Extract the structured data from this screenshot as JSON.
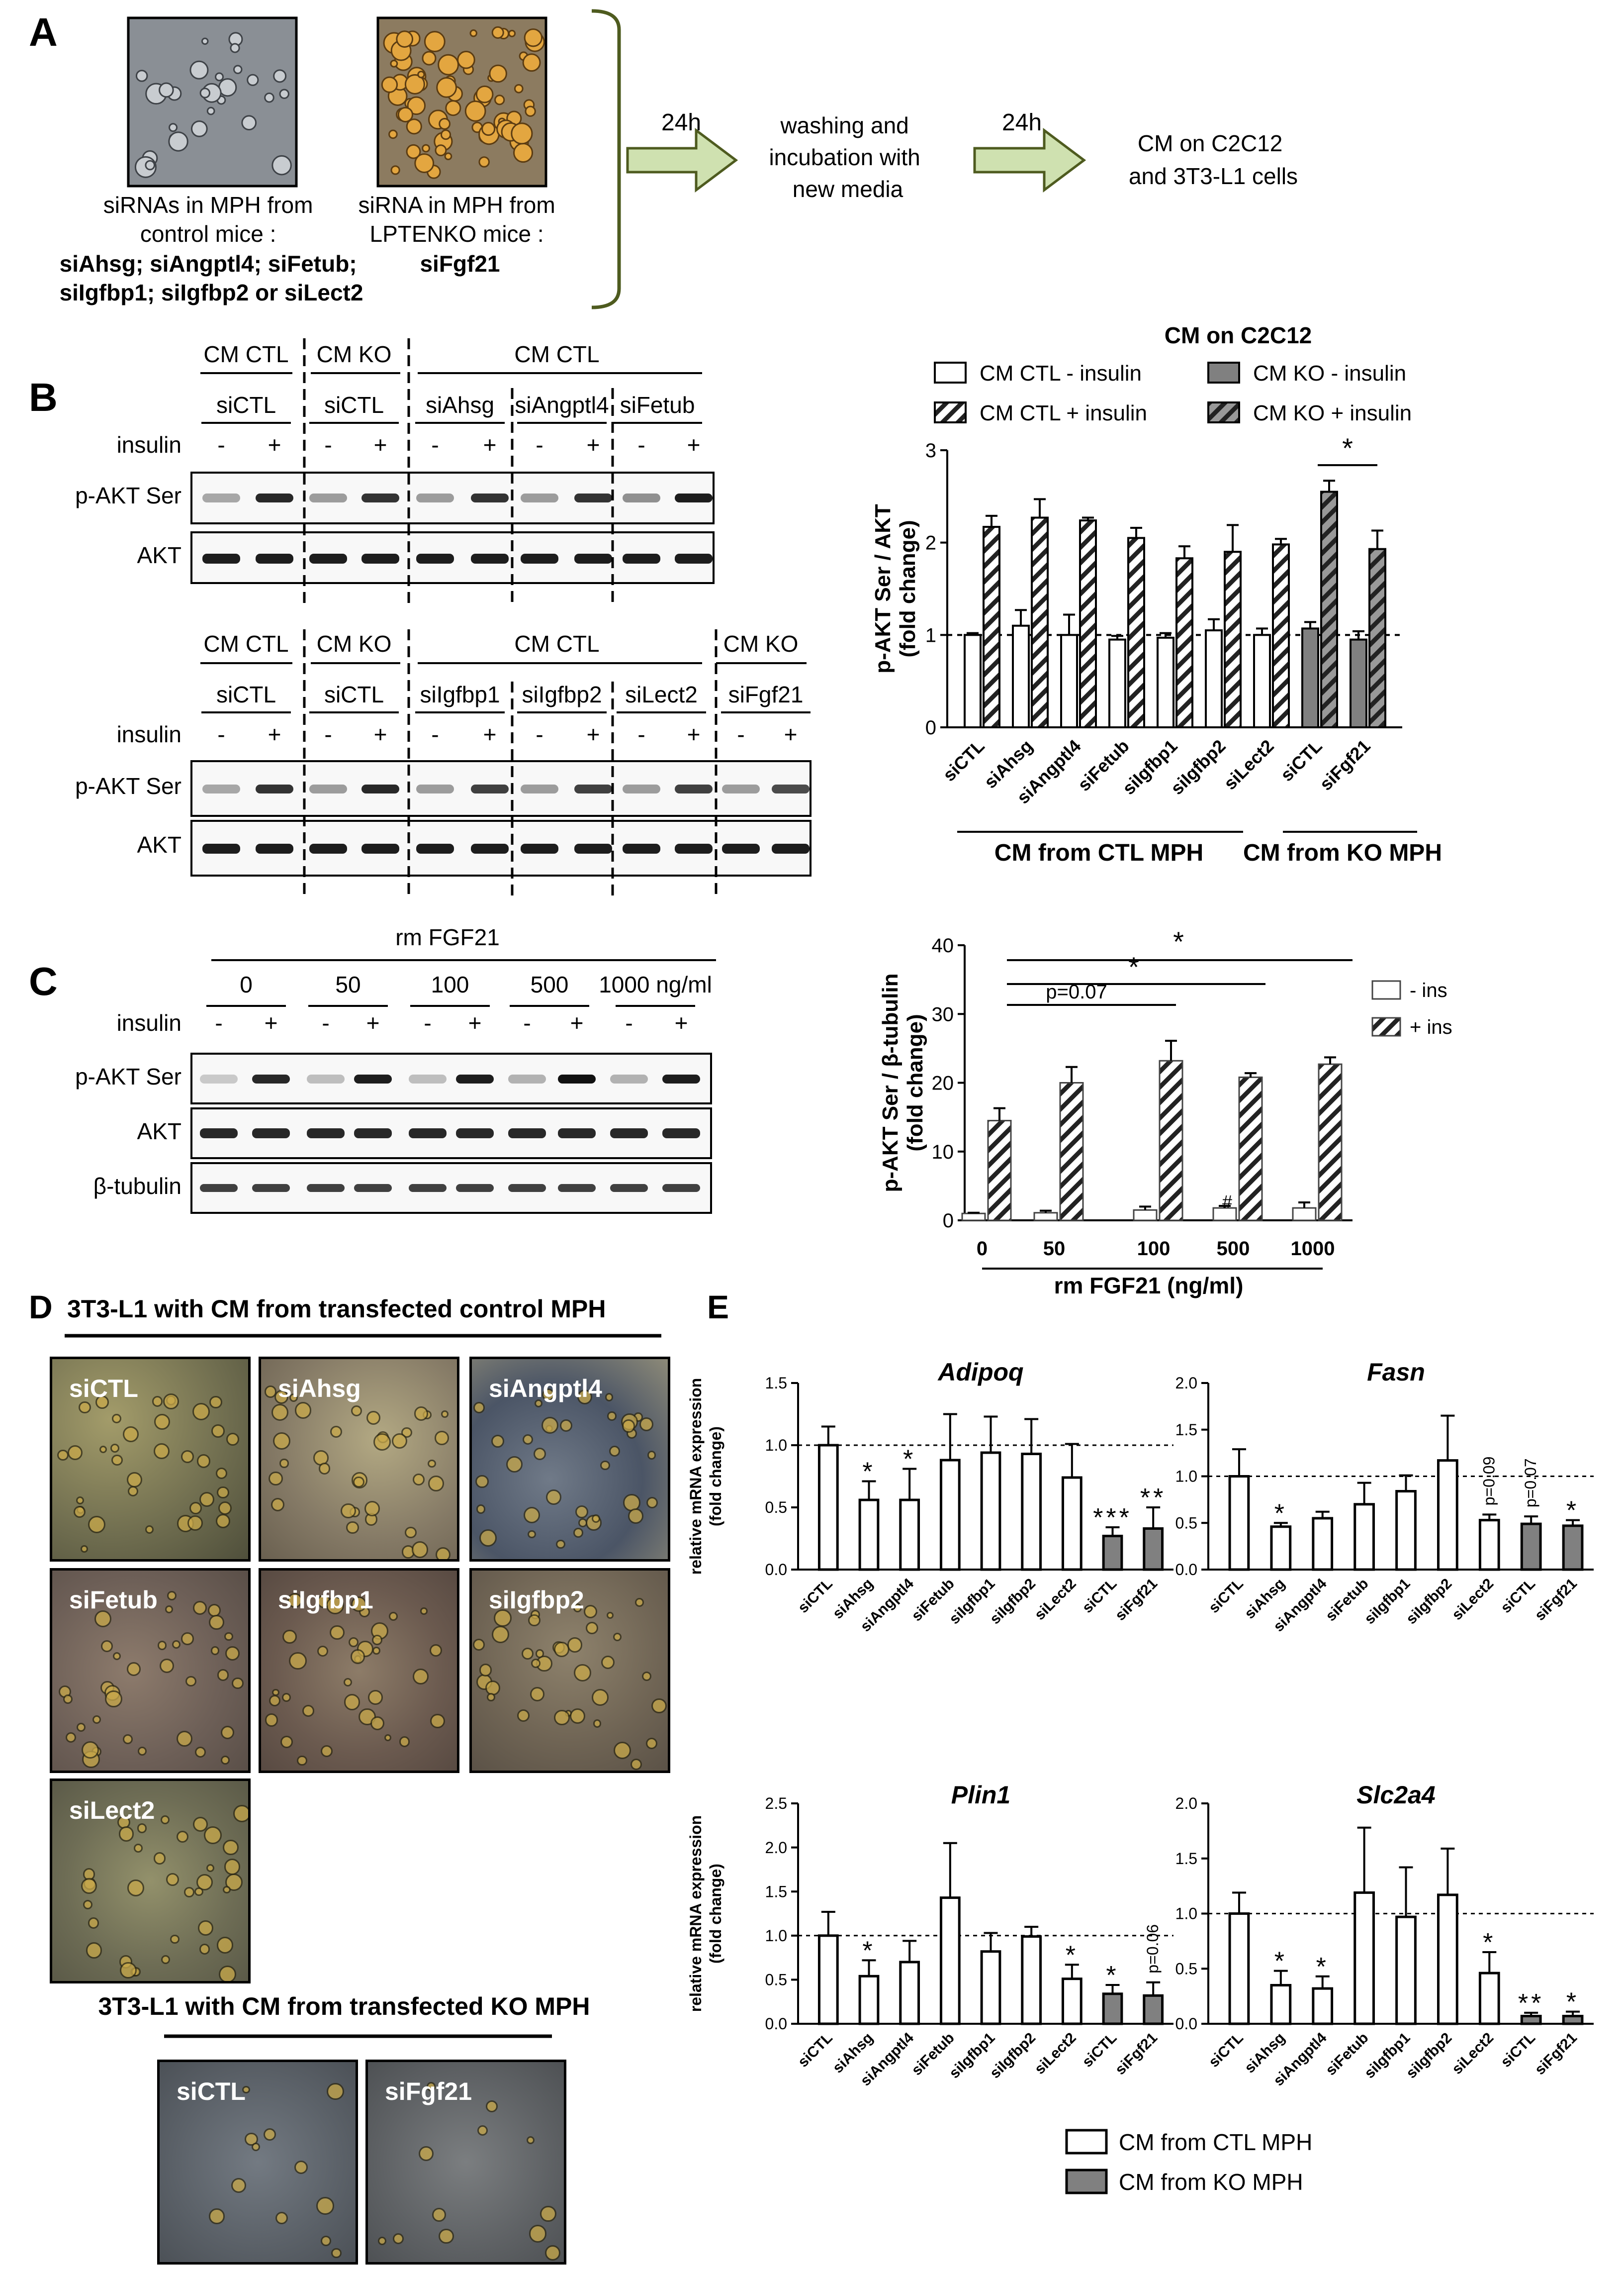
{
  "panelA": {
    "letter": "A",
    "caption1": [
      "siRNAs in MPH from",
      "control mice :"
    ],
    "caption1_bold": [
      "siAhsg; siAngptl4; siFetub;",
      "siIgfbp1; siIgfbp2 or siLect2"
    ],
    "caption2": [
      "siRNA in MPH from",
      "LPTENKO mice :"
    ],
    "caption2_bold": [
      "siFgf21"
    ],
    "step1_time": "24h",
    "step2_text": [
      "washing and",
      "incubation with",
      "new media"
    ],
    "step2_time": "24h",
    "step3_text": [
      "CM on C2C12",
      "and 3T3-L1 cells"
    ]
  },
  "panelB": {
    "letter": "B",
    "insulin_label": "insulin",
    "minus": "-",
    "plus": "+",
    "blot1": {
      "groups": [
        "CM CTL",
        "CM KO",
        "CM CTL"
      ],
      "sirnas": [
        "siCTL",
        "siCTL",
        "siAhsg",
        "siAngptl4",
        "siFetub"
      ],
      "rows": [
        "p-AKT Ser",
        "AKT"
      ]
    },
    "blot2": {
      "groups": [
        "CM CTL",
        "CM KO",
        "CM CTL",
        "CM KO"
      ],
      "sirnas": [
        "siCTL",
        "siCTL",
        "siIgfbp1",
        "siIgfbp2",
        "siLect2",
        "siFgf21"
      ],
      "rows": [
        "p-AKT Ser",
        "AKT"
      ]
    }
  },
  "panelC": {
    "letter": "C",
    "treatment_label": "rm FGF21",
    "doses": [
      "0",
      "50",
      "100",
      "500",
      "1000 ng/ml"
    ],
    "insulin_label": "insulin",
    "rows": [
      "p-AKT Ser",
      "AKT",
      "β-tubulin"
    ]
  },
  "panelD": {
    "letter": "D",
    "title_ctl": "3T3-L1 with CM from transfected control MPH",
    "title_ko": "3T3-L1 with CM from transfected KO MPH",
    "ctl_photos": [
      "siCTL",
      "siAhsg",
      "siAngptl4",
      "siFetub",
      "siIgfbp1",
      "siIgfbp2",
      "siLect2"
    ],
    "ko_photos": [
      "siCTL",
      "siFgf21"
    ]
  },
  "panelE": {
    "letter": "E",
    "legend": [
      "CM from CTL MPH",
      "CM from KO MPH"
    ]
  },
  "chart_data": [
    {
      "id": "B",
      "type": "bar",
      "title": "CM on C2C12",
      "ylabel": "p-AKT Ser / AKT (fold change)",
      "ylim": [
        0,
        3
      ],
      "yticks": [
        "0",
        "1",
        "2",
        "3"
      ],
      "categories": [
        "siCTL",
        "siAhsg",
        "siAngptl4",
        "siFetub",
        "siIgfbp1",
        "siIgfbp2",
        "siLect2",
        "siCTL",
        "siFgf21"
      ],
      "series": [
        {
          "name": "CM CTL - insulin",
          "values": [
            1.0,
            1.1,
            1.0,
            0.95,
            0.97,
            1.05,
            1.0,
            1.07,
            0.95
          ],
          "errors": [
            0.02,
            0.17,
            0.22,
            0.04,
            0.05,
            0.12,
            0.07,
            0.07,
            0.09
          ]
        },
        {
          "name": "CM CTL + insulin",
          "values": [
            2.17,
            2.27,
            2.24,
            2.05,
            1.83,
            1.9,
            1.98,
            2.55,
            1.93
          ],
          "errors": [
            0.12,
            0.2,
            0.03,
            0.11,
            0.13,
            0.29,
            0.06,
            0.12,
            0.2
          ]
        }
      ],
      "legend": [
        "CM CTL - insulin",
        "CM CTL + insulin",
        "CM KO - insulin",
        "CM KO + insulin"
      ],
      "groups": [
        "CM from CTL MPH",
        "CM from KO MPH"
      ],
      "annotations": [
        "*"
      ]
    },
    {
      "id": "C",
      "type": "bar",
      "ylabel": "p-AKT Ser / β-tubulin (fold change)",
      "xlabel": "rm FGF21 (ng/ml)",
      "ylim": [
        0,
        40
      ],
      "yticks": [
        "0",
        "10",
        "20",
        "30",
        "40"
      ],
      "categories": [
        "0",
        "50",
        "100",
        "500",
        "1000"
      ],
      "series": [
        {
          "name": "- ins",
          "values": [
            1.0,
            1.1,
            1.5,
            1.8,
            1.8
          ],
          "errors": [
            0.1,
            0.3,
            0.5,
            0.3,
            0.8
          ]
        },
        {
          "name": "+ ins",
          "values": [
            14.5,
            20.0,
            23.2,
            20.8,
            22.7
          ],
          "errors": [
            1.8,
            2.3,
            2.9,
            0.6,
            1.0
          ]
        }
      ],
      "annotations": [
        "p=0.07",
        "*",
        "*",
        "#"
      ]
    },
    {
      "id": "Adipoq",
      "type": "bar",
      "title": "Adipoq",
      "ylabel": "relative mRNA expression (fold change)",
      "ylim": [
        0,
        1.5
      ],
      "yticks": [
        "0.0",
        "0.5",
        "1.0",
        "1.5"
      ],
      "categories": [
        "siCTL",
        "siAhsg",
        "siAngptl4",
        "siFetub",
        "siIgfbp1",
        "siIgfbp2",
        "siLect2",
        "siCTL",
        "siFgf21"
      ],
      "values": [
        1.0,
        0.56,
        0.56,
        0.88,
        0.94,
        0.93,
        0.74,
        0.27,
        0.33
      ],
      "errors": [
        0.15,
        0.15,
        0.25,
        0.37,
        0.29,
        0.28,
        0.27,
        0.07,
        0.17
      ],
      "sig": [
        "",
        "*",
        "*",
        "",
        "",
        "",
        "",
        "***",
        "**"
      ]
    },
    {
      "id": "Fasn",
      "type": "bar",
      "title": "Fasn",
      "ylabel": "",
      "ylim": [
        0,
        2.0
      ],
      "yticks": [
        "0.0",
        "0.5",
        "1.0",
        "1.5",
        "2.0"
      ],
      "categories": [
        "siCTL",
        "siAhsg",
        "siAngptl4",
        "siFetub",
        "siIgfbp1",
        "siIgfbp2",
        "siLect2",
        "siCTL",
        "siFgf21"
      ],
      "values": [
        1.0,
        0.46,
        0.55,
        0.7,
        0.84,
        1.17,
        0.53,
        0.49,
        0.47
      ],
      "errors": [
        0.29,
        0.04,
        0.07,
        0.23,
        0.17,
        0.48,
        0.06,
        0.08,
        0.06
      ],
      "sig": [
        "",
        "*",
        "",
        "",
        "",
        "",
        "p=0.09",
        "p=0.07",
        "*"
      ]
    },
    {
      "id": "Plin1",
      "type": "bar",
      "title": "Plin1",
      "ylabel": "relative mRNA expression (fold change)",
      "ylim": [
        0,
        2.5
      ],
      "yticks": [
        "0.0",
        "0.5",
        "1.0",
        "1.5",
        "2.0",
        "2.5"
      ],
      "categories": [
        "siCTL",
        "siAhsg",
        "siAngptl4",
        "siFetub",
        "siIgfbp1",
        "siIgfbp2",
        "siLect2",
        "siCTL",
        "siFgf21"
      ],
      "values": [
        1.0,
        0.54,
        0.7,
        1.43,
        0.82,
        0.99,
        0.51,
        0.34,
        0.32
      ],
      "errors": [
        0.27,
        0.18,
        0.24,
        0.62,
        0.21,
        0.11,
        0.16,
        0.1,
        0.15
      ],
      "sig": [
        "",
        "*",
        "",
        "",
        "",
        "",
        "*",
        "*",
        "p=0.06"
      ]
    },
    {
      "id": "Slc2a4",
      "type": "bar",
      "title": "Slc2a4",
      "ylabel": "",
      "ylim": [
        0,
        2.0
      ],
      "yticks": [
        "0.0",
        "0.5",
        "1.0",
        "1.5",
        "2.0"
      ],
      "categories": [
        "siCTL",
        "siAhsg",
        "siAngptl4",
        "siFetub",
        "siIgfbp1",
        "siIgfbp2",
        "siLect2",
        "siCTL",
        "siFgf21"
      ],
      "values": [
        1.0,
        0.35,
        0.32,
        1.19,
        0.97,
        1.17,
        0.46,
        0.07,
        0.07
      ],
      "errors": [
        0.19,
        0.13,
        0.11,
        0.59,
        0.45,
        0.42,
        0.19,
        0.03,
        0.04
      ],
      "sig": [
        "",
        "*",
        "*",
        "",
        "",
        "",
        "*",
        "**",
        "*"
      ]
    }
  ]
}
